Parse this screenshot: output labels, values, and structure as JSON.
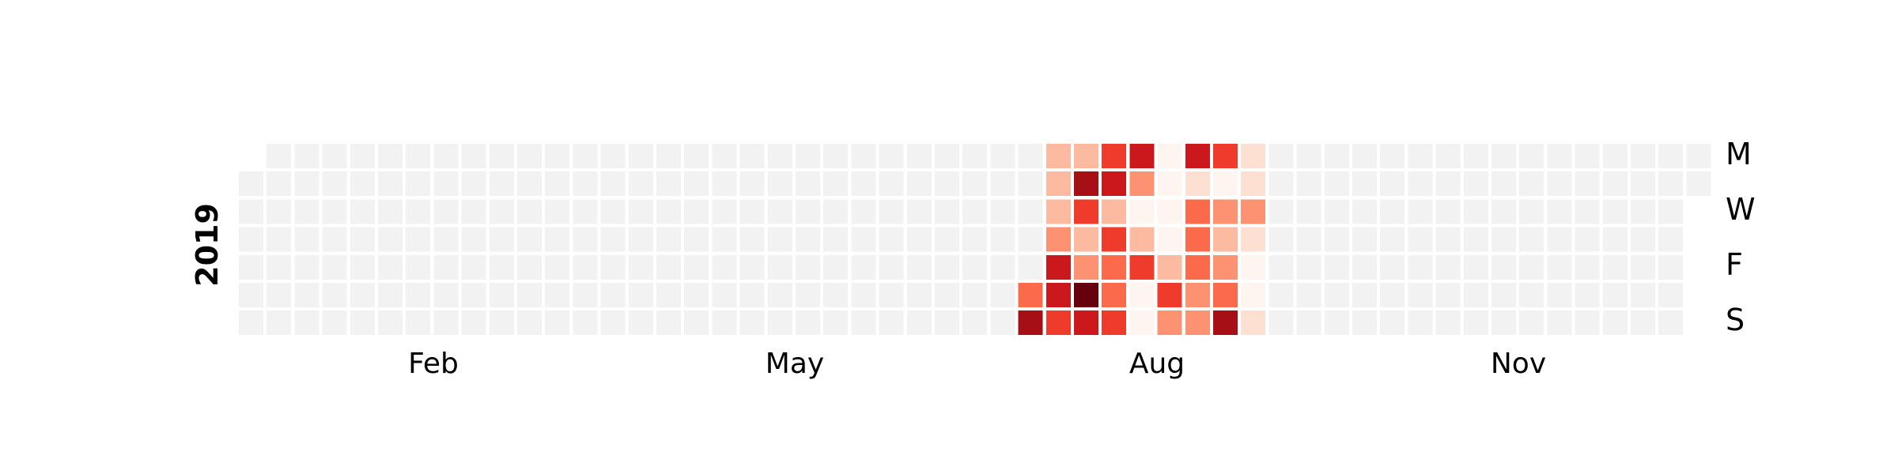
{
  "chart_data": {
    "type": "heatmap",
    "year_label": "2019",
    "month_labels": [
      "Feb",
      "May",
      "Aug",
      "Nov"
    ],
    "weekday_labels": [
      "M",
      "W",
      "F",
      "S"
    ],
    "colors": {
      "empty": "#f2f2f2",
      "scale": [
        "#fff5f0",
        "#fee0d2",
        "#fcbba1",
        "#fc9272",
        "#fb6a4a",
        "#ef3b2c",
        "#cb181d",
        "#a50f15",
        "#67000d"
      ]
    },
    "value_scale": [
      0,
      8
    ],
    "active_weeks": [
      {
        "week": 28,
        "days": [
          null,
          null,
          null,
          null,
          null,
          4,
          7
        ]
      },
      {
        "week": 29,
        "days": [
          2,
          2,
          2,
          3,
          6,
          6,
          5
        ]
      },
      {
        "week": 30,
        "days": [
          2,
          7,
          5,
          2,
          3,
          8,
          6
        ]
      },
      {
        "week": 31,
        "days": [
          5,
          6,
          2,
          5,
          4,
          4,
          5
        ]
      },
      {
        "week": 32,
        "days": [
          6,
          3,
          0,
          2,
          5,
          0,
          0
        ]
      },
      {
        "week": 33,
        "days": [
          0,
          0,
          0,
          0,
          2,
          5,
          3
        ]
      },
      {
        "week": 34,
        "days": [
          6,
          1,
          4,
          4,
          4,
          3,
          3
        ]
      },
      {
        "week": 35,
        "days": [
          5,
          0,
          3,
          2,
          3,
          4,
          7
        ]
      },
      {
        "week": 36,
        "days": [
          1,
          1,
          3,
          1,
          0,
          0,
          1
        ]
      }
    ]
  }
}
